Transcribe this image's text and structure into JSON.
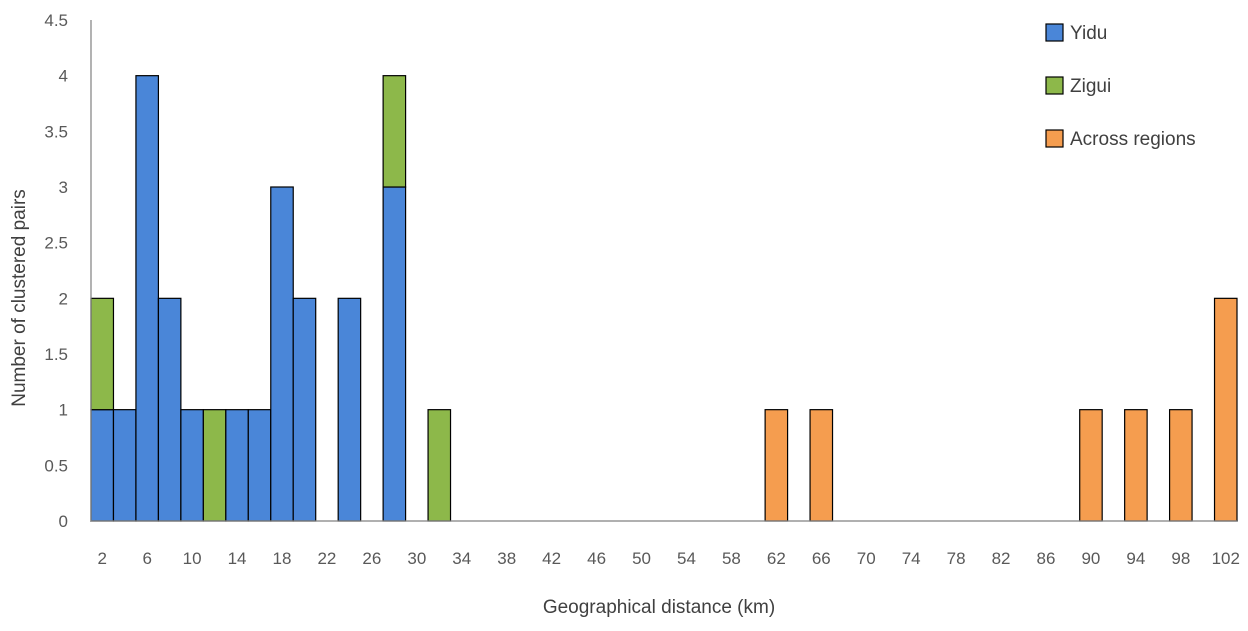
{
  "chart_data": {
    "type": "bar",
    "stacked": true,
    "title": "",
    "xlabel": "Geographical distance (km)",
    "ylabel": "Number of clustered pairs",
    "ylim": [
      0,
      4.5
    ],
    "yticks": [
      "0",
      "0.5",
      "1",
      "1.5",
      "2",
      "2.5",
      "3",
      "3.5",
      "4",
      "4.5"
    ],
    "x": [
      2,
      4,
      6,
      8,
      10,
      12,
      14,
      16,
      18,
      20,
      22,
      24,
      26,
      28,
      30,
      32,
      34,
      36,
      38,
      40,
      42,
      44,
      46,
      48,
      50,
      52,
      54,
      56,
      58,
      60,
      62,
      64,
      66,
      68,
      70,
      72,
      74,
      76,
      78,
      80,
      82,
      84,
      86,
      88,
      90,
      92,
      94,
      96,
      98,
      100,
      102
    ],
    "xtick_labels": [
      "2",
      "6",
      "10",
      "14",
      "18",
      "22",
      "26",
      "30",
      "34",
      "38",
      "42",
      "46",
      "50",
      "54",
      "58",
      "62",
      "66",
      "70",
      "74",
      "78",
      "82",
      "86",
      "90",
      "94",
      "98",
      "102"
    ],
    "legend_position": "top-right",
    "series": [
      {
        "name": "Yidu",
        "color": "#4A86D8",
        "values": [
          1,
          1,
          4,
          2,
          1,
          0,
          1,
          1,
          3,
          2,
          0,
          2,
          0,
          3,
          0,
          0,
          0,
          0,
          0,
          0,
          0,
          0,
          0,
          0,
          0,
          0,
          0,
          0,
          0,
          0,
          0,
          0,
          0,
          0,
          0,
          0,
          0,
          0,
          0,
          0,
          0,
          0,
          0,
          0,
          0,
          0,
          0,
          0,
          0,
          0,
          0
        ]
      },
      {
        "name": "Zigui",
        "color": "#8DB84A",
        "values": [
          1,
          0,
          0,
          0,
          0,
          1,
          0,
          0,
          0,
          0,
          0,
          0,
          0,
          1,
          0,
          1,
          0,
          0,
          0,
          0,
          0,
          0,
          0,
          0,
          0,
          0,
          0,
          0,
          0,
          0,
          0,
          0,
          0,
          0,
          0,
          0,
          0,
          0,
          0,
          0,
          0,
          0,
          0,
          0,
          0,
          0,
          0,
          0,
          0,
          0,
          0
        ]
      },
      {
        "name": "Across regions",
        "color": "#F59D4F",
        "values": [
          0,
          0,
          0,
          0,
          0,
          0,
          0,
          0,
          0,
          0,
          0,
          0,
          0,
          0,
          0,
          0,
          0,
          0,
          0,
          0,
          0,
          0,
          0,
          0,
          0,
          0,
          0,
          0,
          0,
          0,
          1,
          0,
          1,
          0,
          0,
          0,
          0,
          0,
          0,
          0,
          0,
          0,
          0,
          0,
          1,
          0,
          1,
          0,
          1,
          0,
          2
        ]
      }
    ]
  }
}
